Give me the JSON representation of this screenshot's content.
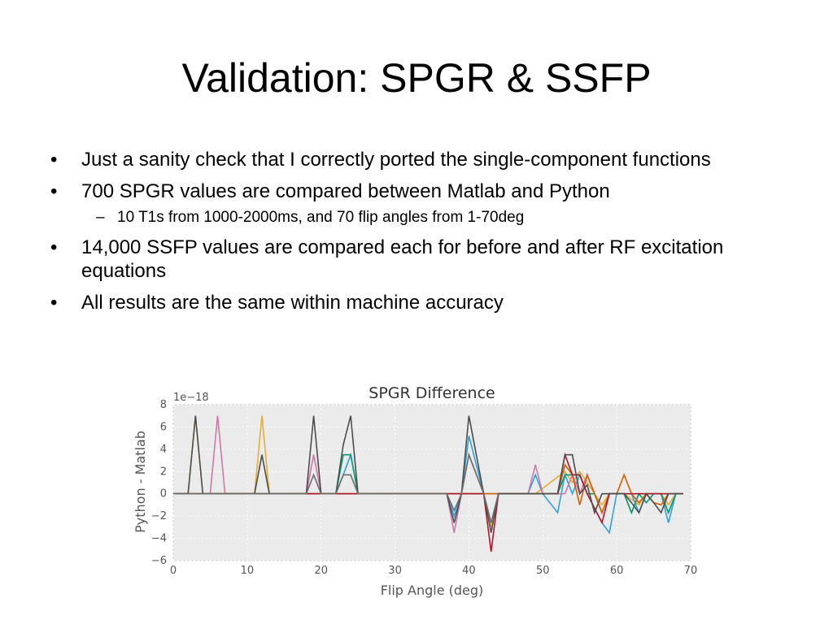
{
  "slide": {
    "title": "Validation: SPGR & SSFP",
    "bullets": [
      {
        "marker": "•",
        "text": "Just a sanity check that I correctly ported the single-component functions"
      },
      {
        "marker": "•",
        "text": "700 SPGR values are compared between Matlab and Python"
      },
      {
        "marker": "–",
        "text": "10 T1s from 1000-2000ms, and 70 flip angles from 1-70deg",
        "level": 2
      },
      {
        "marker": "•",
        "text": "14,000 SSFP values are compared each for before and after RF excitation equations"
      },
      {
        "marker": "•",
        "text": "All results are the same within machine accuracy"
      }
    ]
  },
  "chart_data": {
    "type": "line",
    "title": "SPGR Difference",
    "xlabel": "Flip Angle (deg)",
    "ylabel": "Python - Matlab",
    "y_scale_label": "1e−18",
    "xlim": [
      0,
      70
    ],
    "ylim": [
      -6,
      8
    ],
    "x_ticks": [
      "0",
      "10",
      "20",
      "30",
      "40",
      "50",
      "60",
      "70"
    ],
    "y_ticks": [
      "−6",
      "−4",
      "−2",
      "0",
      "2",
      "4",
      "6",
      "8"
    ],
    "grid": true,
    "series": [
      {
        "color": "#e5ae38",
        "points": [
          [
            0,
            0
          ],
          [
            2,
            0
          ],
          [
            3,
            7
          ],
          [
            4,
            0
          ],
          [
            11,
            0
          ],
          [
            12,
            7
          ],
          [
            13,
            0
          ],
          [
            19,
            0
          ],
          [
            24,
            0
          ],
          [
            40,
            0
          ],
          [
            42,
            0
          ],
          [
            43,
            -3
          ],
          [
            44,
            0
          ],
          [
            49,
            0
          ],
          [
            53,
            2
          ],
          [
            54,
            1
          ],
          [
            55,
            2
          ],
          [
            56,
            1
          ],
          [
            57,
            0
          ],
          [
            58,
            -1
          ],
          [
            59,
            0
          ],
          [
            61,
            0
          ],
          [
            63,
            -1
          ],
          [
            64,
            0
          ],
          [
            66,
            0
          ],
          [
            67,
            -1
          ],
          [
            68,
            0
          ],
          [
            69,
            0
          ]
        ]
      },
      {
        "color": "#30a2da",
        "points": [
          [
            0,
            0
          ],
          [
            22,
            0
          ],
          [
            23,
            1.7
          ],
          [
            24,
            3.5
          ],
          [
            25,
            0
          ],
          [
            37,
            0
          ],
          [
            38,
            -2
          ],
          [
            39,
            0
          ],
          [
            40,
            5.2
          ],
          [
            42,
            0
          ],
          [
            43,
            -2.6
          ],
          [
            44,
            0
          ],
          [
            48,
            0
          ],
          [
            49,
            1.7
          ],
          [
            50,
            0
          ],
          [
            52,
            -1.7
          ],
          [
            53,
            1.7
          ],
          [
            54,
            0
          ],
          [
            55,
            1.7
          ],
          [
            56,
            0
          ],
          [
            58,
            -2.6
          ],
          [
            59,
            -3.5
          ],
          [
            60,
            0
          ],
          [
            62,
            0
          ],
          [
            63,
            -1.7
          ],
          [
            64,
            0
          ],
          [
            66,
            0
          ],
          [
            67,
            -2.6
          ],
          [
            68,
            0
          ],
          [
            69,
            0
          ]
        ]
      },
      {
        "color": "#cc79a7",
        "points": [
          [
            0,
            0
          ],
          [
            5,
            0
          ],
          [
            6,
            7
          ],
          [
            7,
            0
          ],
          [
            18,
            0
          ],
          [
            19,
            3.5
          ],
          [
            20,
            0
          ],
          [
            37,
            0
          ],
          [
            38,
            -3.5
          ],
          [
            39,
            0
          ],
          [
            40,
            3.5
          ],
          [
            42,
            0
          ],
          [
            43,
            -2.6
          ],
          [
            44,
            0
          ],
          [
            48,
            0
          ],
          [
            49,
            2.6
          ],
          [
            50,
            0
          ],
          [
            53,
            0
          ],
          [
            54,
            1.7
          ],
          [
            55,
            0
          ],
          [
            56,
            1.7
          ],
          [
            57,
            0
          ],
          [
            58,
            -1.7
          ],
          [
            59,
            0
          ],
          [
            61,
            0
          ],
          [
            62,
            -1.7
          ],
          [
            63,
            0
          ],
          [
            66,
            0
          ],
          [
            67,
            -1.7
          ],
          [
            68,
            0
          ],
          [
            69,
            0
          ]
        ]
      },
      {
        "color": "#009e73",
        "points": [
          [
            0,
            0
          ],
          [
            22,
            0
          ],
          [
            23,
            3.5
          ],
          [
            24,
            3.5
          ],
          [
            25,
            0
          ],
          [
            49,
            0
          ],
          [
            50,
            0
          ],
          [
            52,
            0
          ],
          [
            53,
            1.7
          ],
          [
            54,
            1.7
          ],
          [
            55,
            1.7
          ],
          [
            56,
            0
          ],
          [
            57,
            0
          ],
          [
            58,
            -1.7
          ],
          [
            59,
            0
          ],
          [
            61,
            0
          ],
          [
            62,
            -1.7
          ],
          [
            63,
            0
          ],
          [
            64,
            -0.8
          ],
          [
            65,
            0
          ],
          [
            66,
            0
          ],
          [
            67,
            -1.7
          ],
          [
            68,
            0
          ],
          [
            69,
            0
          ]
        ]
      },
      {
        "color": "#d55e00",
        "points": [
          [
            0,
            0
          ],
          [
            52,
            0
          ],
          [
            53,
            2.6
          ],
          [
            54,
            1.7
          ],
          [
            55,
            -1.0
          ],
          [
            56,
            1.7
          ],
          [
            57,
            0
          ],
          [
            58,
            -1.7
          ],
          [
            59,
            0
          ],
          [
            60,
            0
          ],
          [
            61,
            1.7
          ],
          [
            62,
            0
          ],
          [
            63,
            -0.8
          ],
          [
            64,
            0
          ],
          [
            65,
            -0.8
          ],
          [
            66,
            -1.0
          ],
          [
            67,
            0
          ],
          [
            69,
            0
          ]
        ]
      },
      {
        "color": "#b2182b",
        "points": [
          [
            0,
            0
          ],
          [
            40,
            0
          ],
          [
            42,
            0
          ],
          [
            43,
            -5.2
          ],
          [
            44,
            0
          ],
          [
            52,
            0
          ],
          [
            53,
            3.5
          ],
          [
            54,
            1.7
          ],
          [
            55,
            1.7
          ],
          [
            56,
            0
          ],
          [
            58,
            -2.6
          ],
          [
            59,
            0
          ],
          [
            69,
            0
          ]
        ]
      },
      {
        "color": "#4d4d4d",
        "points": [
          [
            0,
            0
          ],
          [
            2,
            0
          ],
          [
            3,
            7
          ],
          [
            4,
            0
          ],
          [
            11,
            0
          ],
          [
            12,
            3.5
          ],
          [
            13,
            0
          ],
          [
            18,
            0
          ],
          [
            19,
            7
          ],
          [
            20,
            0
          ],
          [
            22,
            0
          ],
          [
            23,
            4.4
          ],
          [
            24,
            7
          ],
          [
            25,
            0
          ],
          [
            37,
            0
          ],
          [
            38,
            -2.6
          ],
          [
            39,
            0
          ],
          [
            40,
            7
          ],
          [
            42,
            0
          ],
          [
            43,
            -3.5
          ],
          [
            44,
            0
          ],
          [
            48,
            0
          ],
          [
            49,
            0
          ],
          [
            50,
            0
          ],
          [
            52,
            0
          ],
          [
            53,
            3.5
          ],
          [
            54,
            3.5
          ],
          [
            55,
            0
          ],
          [
            56,
            0.8
          ],
          [
            57,
            -1.7
          ],
          [
            58,
            0
          ],
          [
            59,
            0
          ],
          [
            60,
            0
          ],
          [
            61,
            0
          ],
          [
            62,
            -0.8
          ],
          [
            63,
            -1.7
          ],
          [
            64,
            0
          ],
          [
            65,
            -0.8
          ],
          [
            66,
            -1.7
          ],
          [
            67,
            0
          ],
          [
            68,
            0
          ],
          [
            69,
            0
          ]
        ]
      },
      {
        "color": "#6d6d6d",
        "points": [
          [
            0,
            0
          ],
          [
            18,
            0
          ],
          [
            19,
            1.7
          ],
          [
            20,
            0
          ],
          [
            22,
            0
          ],
          [
            23,
            1.7
          ],
          [
            24,
            1.7
          ],
          [
            25,
            0
          ],
          [
            37,
            0
          ],
          [
            38,
            -1.5
          ],
          [
            39,
            0
          ],
          [
            40,
            3.5
          ],
          [
            42,
            0
          ],
          [
            43,
            -2.6
          ],
          [
            44,
            0
          ]
        ]
      }
    ]
  }
}
